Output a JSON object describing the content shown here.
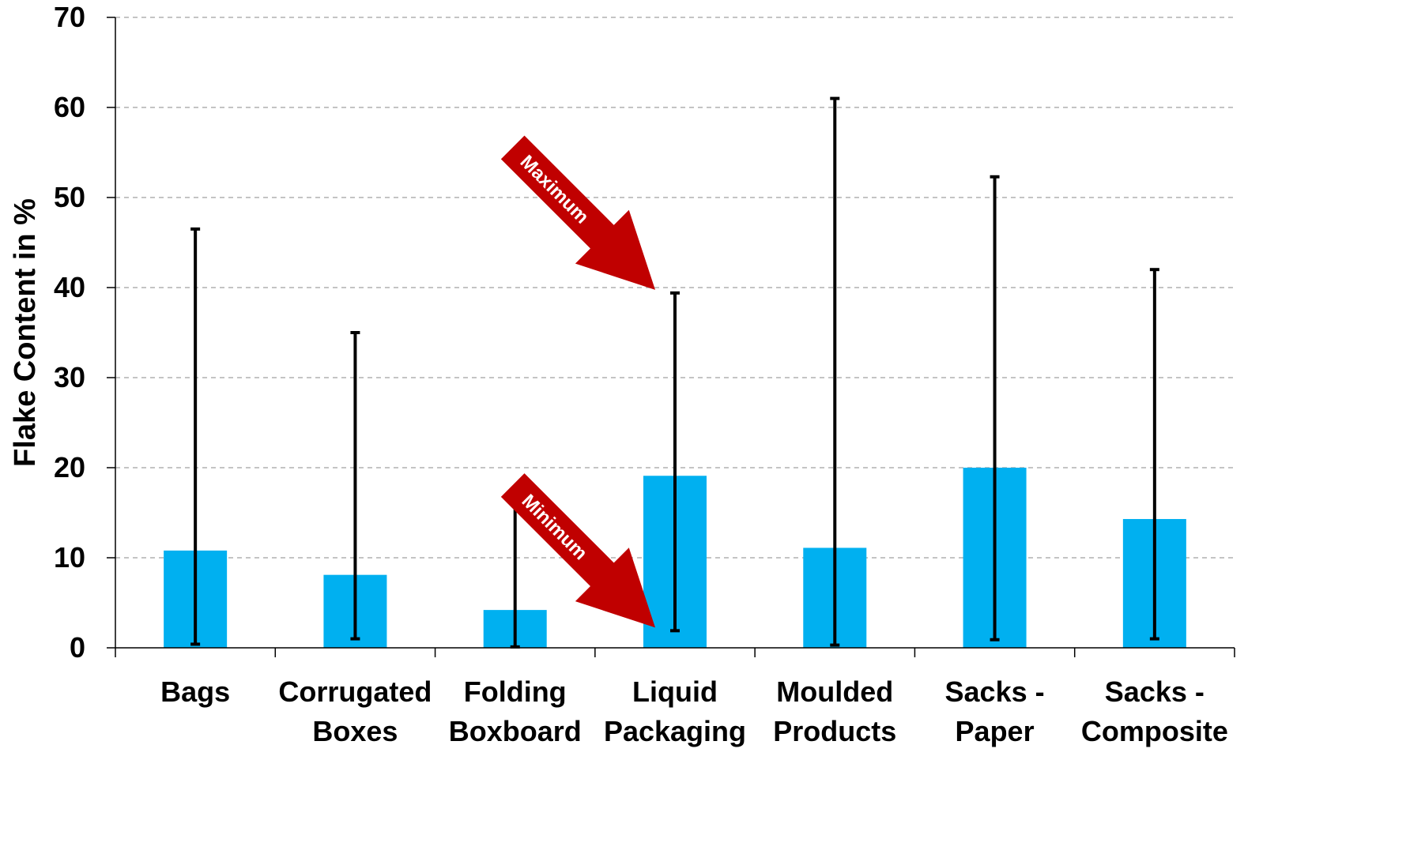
{
  "chart_data": {
    "type": "bar",
    "title": "",
    "xlabel": "",
    "ylabel": "Flake Content in %",
    "ylim": [
      0,
      70
    ],
    "yticks": [
      0,
      10,
      20,
      30,
      40,
      50,
      60,
      70
    ],
    "grid": true,
    "categories": [
      [
        "Bags"
      ],
      [
        "Corrugated",
        "Boxes"
      ],
      [
        "Folding",
        "Boxboard"
      ],
      [
        "Liquid",
        "Packaging"
      ],
      [
        "Moulded",
        "Products"
      ],
      [
        "Sacks -",
        "Paper"
      ],
      [
        "Sacks -",
        "Composite"
      ]
    ],
    "values": [
      10.8,
      8.1,
      4.2,
      19.1,
      11.1,
      20.0,
      14.3
    ],
    "minimum": [
      0.4,
      1.0,
      0.1,
      1.9,
      0.3,
      0.9,
      1.0
    ],
    "maximum": [
      46.5,
      35.0,
      16.0,
      39.4,
      61.0,
      52.3,
      42.0
    ],
    "annotations": [
      {
        "text": "Maximum",
        "target_category": 3,
        "target_value": 39.4
      },
      {
        "text": "Minimum",
        "target_category": 3,
        "target_value": 1.9
      }
    ],
    "colors": {
      "bar": "#00b0f0",
      "error_bar": "#000000",
      "arrow": "#c00000",
      "grid": "#b0b0b0"
    }
  }
}
